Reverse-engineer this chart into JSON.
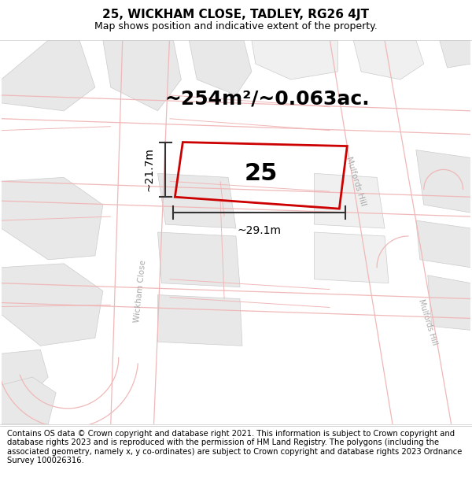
{
  "title": "25, WICKHAM CLOSE, TADLEY, RG26 4JT",
  "subtitle": "Map shows position and indicative extent of the property.",
  "area_label": "~254m²/~0.063ac.",
  "plot_number": "25",
  "width_label": "~29.1m",
  "height_label": "~21.7m",
  "footer": "Contains OS data © Crown copyright and database right 2021. This information is subject to Crown copyright and database rights 2023 and is reproduced with the permission of HM Land Registry. The polygons (including the associated geometry, namely x, y co-ordinates) are subject to Crown copyright and database rights 2023 Ordnance Survey 100026316.",
  "bg_color": "#ffffff",
  "map_bg": "#ffffff",
  "cadastral_color": "#f0b8b8",
  "building_fill": "#e8e8e8",
  "building_edge": "#cccccc",
  "road_label_color": "#aaaaaa",
  "plot_edge_color": "#cc0000",
  "dim_line_color": "#333333",
  "title_fontsize": 11,
  "subtitle_fontsize": 9,
  "area_fontsize": 18,
  "plot_num_fontsize": 22,
  "dim_fontsize": 10,
  "footer_fontsize": 7.2
}
